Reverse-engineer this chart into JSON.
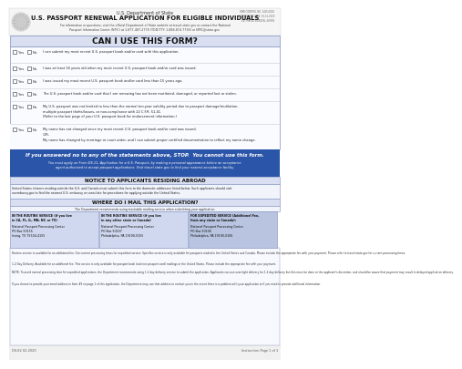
{
  "title_agency": "U.S. Department of State",
  "title_main": "U.S. PASSPORT RENEWAL APPLICATION FOR ELIGIBLE INDIVIDUALS",
  "title_sub": "For information or questions, visit the official Department of State website at travel.state.gov or contact the National\nPassport Information Center (NPIC) at 1-877-487-2778 (TDD/TTY: 1-888-874-7793) or NPIC@state.gov",
  "omb_text": "OMB CONTROL NO. 1405-0020\nEXPIRATION DATE: 01-31-2020\nESTIMATED BURDEN: 40 MIN",
  "can_use_title": "CAN I USE THIS FORM?",
  "checklist_texts": [
    "I can submit my most recent U.S. passport book and/or card with this application.",
    "I was at least 16 years old when my most recent U.S. passport book and/or card was issued.",
    "I was issued my most recent U.S. passport book and/or card less than 15 years ago.",
    "The U.S. passport book and/or card that I am renewing has not been mutilated, damaged, or reported lost or stolen.",
    "My U.S. passport was not limited to less than the normal ten-year validity period due to passport damage/mutilation,\nmultiple passport thefts/losses, or non-compliance with 22 C.F.R. 51.41.\n(Refer to the last page of your U.S. passport book for endorsement information.)"
  ],
  "name_change_line1": "My name has not changed since my most recent U.S. passport book and/or card was issued.",
  "name_change_or": "-OR-",
  "name_change_line2": "My name has changed by marriage or court order, and I can submit proper certified documentation to reflect my name change.",
  "stop_text": "If you answered no to any of the statements above, STOP.  You cannot use this form.",
  "stop_subtext": "You must apply on Form DS-11, Application for a U.S. Passport, by making a personal appearance before an acceptance\nagent authorized to accept passport applications. Visit travel.state.gov to find your nearest acceptance facility.",
  "notice_title": "NOTICE TO APPLICANTS RESIDING ABROAD",
  "notice_text": "United States citizens residing outside the U.S. and Canada must submit this form to the domestic addresses listed below. Such applicants should visit\nusembassy.gov to find the nearest U.S. embassy or consulate for procedures for applying outside the United States.",
  "mail_title": "WHERE DO I MAIL THIS APPLICATION?",
  "mail_subtext": "The Department recommends using trackable mailing service when submitting your application.",
  "col1_header": "IN THE ROUTINE SERVICE (if you live\nin CA, FL, IL, MN, NY, or TX)",
  "col1_body": "National Passport Processing Center\nPO Box 90155\nIrving, TX 75504-4155",
  "col2_header": "IN THE ROUTINE SERVICE (if you live\nin any other state or Canada)",
  "col2_body": "National Passport Processing Center\nPO Box 90107\nPhiladelphia, PA 19190-0155",
  "col3_header": "FOR EXPEDITED SERVICE (Additional Fee,\nfrom any state or Canada):",
  "col3_body": "National Passport Processing Center\nPO Box 90106\nPhiladelphia, PA 19190-0106",
  "note1": "Routine service is available for an additional fee. Our current processing times for expedited service. Specifics service is only available for passports mailed in the United States and Canada. Please include the appropriate fee with your payment. Please refer to travel.state.gov for current processing times.",
  "note2": "1-2 Day Delivery: Available for an additional fee. This service is only available for passport book (and not passport card) mailings in the United States. Please include the appropriate fee with your payment.",
  "note3": "NOTE: To avoid normal processing time for expedited applications, the Department recommends using 1-2 day delivery service to submit the application. Applicants can use overnight delivery for 1-2 day delivery but this must be done at the applicant's discretion, and should be aware that payment may result in delayed application delivery.",
  "note4": "If you choose to provide your email address in Item #9 on page 1 of this application, the Department may use that address to contact you in the event there is a problem with your application or if you need to provide additional information.",
  "footer_left": "DS-82 02-2020",
  "footer_right": "Instruction Page 1 of 1",
  "bg_white": "#ffffff",
  "bg_light_blue": "#d9dff0",
  "bg_blue_header": "#6b7fc4",
  "bg_dark_blue": "#2b55a8",
  "bg_medium_blue": "#b8c4e8",
  "border_blue": "#8090c0",
  "col_bg1": "#d0d8ef",
  "col_bg3": "#b8c4e0",
  "text_dark": "#1a1a1a",
  "text_gray": "#444444",
  "text_white": "#ffffff"
}
